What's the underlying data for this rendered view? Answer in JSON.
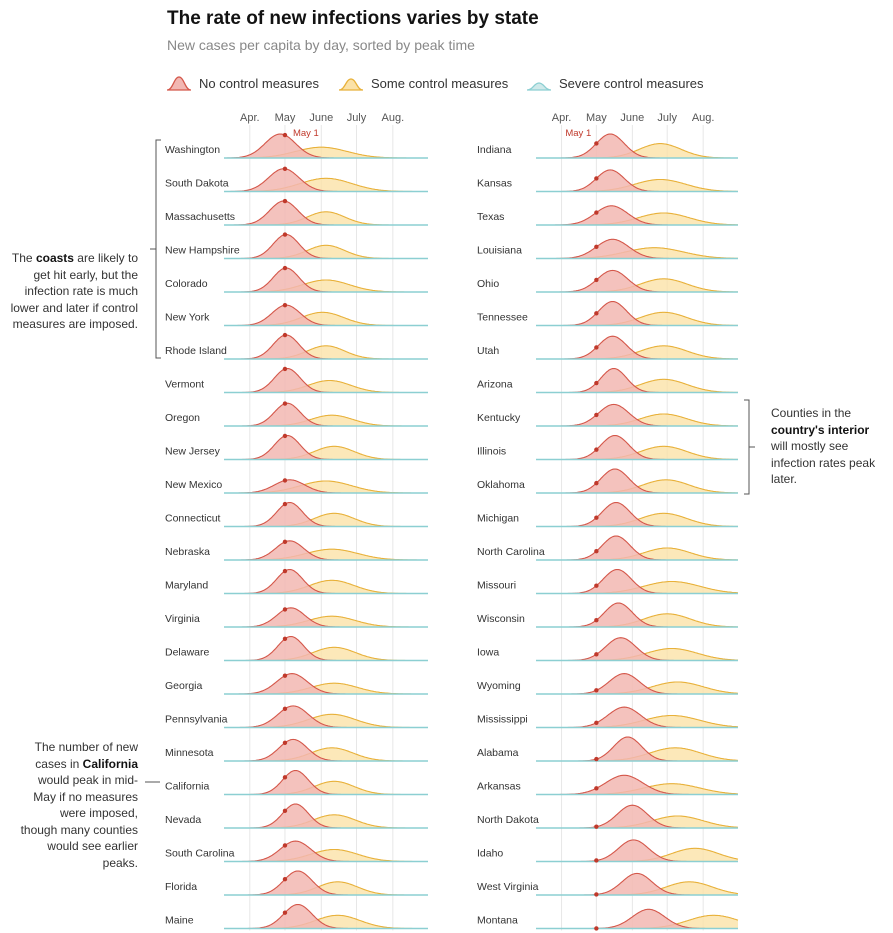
{
  "title": "The rate of new infections varies by state",
  "subtitle": "New cases per capita by day, sorted by peak time",
  "legend": {
    "items": [
      {
        "label": "No control measures",
        "fill": "#f2b7b2",
        "stroke": "#d4574a"
      },
      {
        "label": "Some control measures",
        "fill": "#fbe2a8",
        "stroke": "#e8b13a"
      },
      {
        "label": "Severe control measures",
        "fill": "#cfe9ea",
        "stroke": "#8ccfd2"
      }
    ]
  },
  "annotations": {
    "coasts": {
      "pre": "The ",
      "bold": "coasts",
      "post": " are likely to get hit early, but the infection rate is much lower and later if control measures are imposed."
    },
    "interior": {
      "pre": "Counties in the ",
      "bold": "country's interior",
      "post": " will mostly see infection rates peak later."
    },
    "california": {
      "pre": "The number of new cases in ",
      "bold": "California",
      "post": " would peak in mid-May if no measures were imposed, though many counties would see earlier peaks."
    }
  },
  "chart_data": {
    "type": "area",
    "x_axis": {
      "start": "Mar. 10",
      "end": "Aug. 31",
      "ticks": [
        "Apr.",
        "May",
        "June",
        "July",
        "Aug."
      ]
    },
    "marker": {
      "label": "May 1",
      "date": "May 1"
    },
    "units": "relative new cases per capita (peak of no-measures curve = 1)",
    "colors": {
      "none": "#d4574a",
      "some": "#e8b13a",
      "severe": "#8ccfd2"
    },
    "columns": [
      [
        {
          "state": "Washington",
          "none": {
            "peak": "Apr. 27",
            "width": 13,
            "height": 1.0
          },
          "some": {
            "peak": "June 1",
            "width": 22,
            "height": 0.45
          }
        },
        {
          "state": "South Dakota",
          "none": {
            "peak": "Apr. 30",
            "width": 13,
            "height": 0.95
          },
          "some": {
            "peak": "June 5",
            "width": 22,
            "height": 0.55
          }
        },
        {
          "state": "Massachusetts",
          "none": {
            "peak": "Apr. 30",
            "width": 12,
            "height": 1.0
          },
          "some": {
            "peak": "June 5",
            "width": 16,
            "height": 0.55
          }
        },
        {
          "state": "New Hampshire",
          "none": {
            "peak": "May 2",
            "width": 11,
            "height": 1.0
          },
          "some": {
            "peak": "June 5",
            "width": 16,
            "height": 0.55
          }
        },
        {
          "state": "Colorado",
          "none": {
            "peak": "May 2",
            "width": 11,
            "height": 1.0
          },
          "some": {
            "peak": "June 5",
            "width": 20,
            "height": 0.5
          }
        },
        {
          "state": "New York",
          "none": {
            "peak": "May 2",
            "width": 12,
            "height": 0.85
          },
          "some": {
            "peak": "June 2",
            "width": 18,
            "height": 0.55
          }
        },
        {
          "state": "Rhode Island",
          "none": {
            "peak": "May 2",
            "width": 11,
            "height": 1.0
          },
          "some": {
            "peak": "June 5",
            "width": 16,
            "height": 0.55
          }
        },
        {
          "state": "Vermont",
          "none": {
            "peak": "May 3",
            "width": 11,
            "height": 1.0
          },
          "some": {
            "peak": "June 8",
            "width": 18,
            "height": 0.5
          }
        },
        {
          "state": "Oregon",
          "none": {
            "peak": "May 3",
            "width": 11,
            "height": 0.95
          },
          "some": {
            "peak": "June 10",
            "width": 18,
            "height": 0.45
          }
        },
        {
          "state": "New Jersey",
          "none": {
            "peak": "May 3",
            "width": 11,
            "height": 1.0
          },
          "some": {
            "peak": "June 12",
            "width": 17,
            "height": 0.55
          }
        },
        {
          "state": "New Mexico",
          "none": {
            "peak": "May 5",
            "width": 13,
            "height": 0.55
          },
          "some": {
            "peak": "June 5",
            "width": 22,
            "height": 0.5
          }
        },
        {
          "state": "Connecticut",
          "none": {
            "peak": "May 5",
            "width": 11,
            "height": 1.0
          },
          "some": {
            "peak": "June 12",
            "width": 17,
            "height": 0.55
          }
        },
        {
          "state": "Nebraska",
          "none": {
            "peak": "May 5",
            "width": 12,
            "height": 0.8
          },
          "some": {
            "peak": "June 10",
            "width": 22,
            "height": 0.45
          }
        },
        {
          "state": "Maryland",
          "none": {
            "peak": "May 5",
            "width": 11,
            "height": 1.0
          },
          "some": {
            "peak": "June 10",
            "width": 19,
            "height": 0.55
          }
        },
        {
          "state": "Virginia",
          "none": {
            "peak": "May 6",
            "width": 12,
            "height": 0.8
          },
          "some": {
            "peak": "June 10",
            "width": 20,
            "height": 0.45
          }
        },
        {
          "state": "Delaware",
          "none": {
            "peak": "May 6",
            "width": 11,
            "height": 1.0
          },
          "some": {
            "peak": "June 12",
            "width": 18,
            "height": 0.55
          }
        },
        {
          "state": "Georgia",
          "none": {
            "peak": "May 7",
            "width": 13,
            "height": 0.85
          },
          "some": {
            "peak": "June 12",
            "width": 20,
            "height": 0.45
          }
        },
        {
          "state": "Pennsylvania",
          "none": {
            "peak": "May 8",
            "width": 13,
            "height": 0.9
          },
          "some": {
            "peak": "June 10",
            "width": 20,
            "height": 0.55
          }
        },
        {
          "state": "Minnesota",
          "none": {
            "peak": "May 8",
            "width": 12,
            "height": 0.9
          },
          "some": {
            "peak": "June 10",
            "width": 18,
            "height": 0.55
          }
        },
        {
          "state": "California",
          "none": {
            "peak": "May 10",
            "width": 11,
            "height": 1.0
          },
          "some": {
            "peak": "June 12",
            "width": 17,
            "height": 0.55
          }
        },
        {
          "state": "Nevada",
          "none": {
            "peak": "May 10",
            "width": 11,
            "height": 1.0
          },
          "some": {
            "peak": "June 12",
            "width": 18,
            "height": 0.55
          }
        },
        {
          "state": "South Carolina",
          "none": {
            "peak": "May 10",
            "width": 13,
            "height": 0.85
          },
          "some": {
            "peak": "June 12",
            "width": 20,
            "height": 0.5
          }
        },
        {
          "state": "Florida",
          "none": {
            "peak": "May 12",
            "width": 12,
            "height": 1.0
          },
          "some": {
            "peak": "June 15",
            "width": 17,
            "height": 0.55
          }
        },
        {
          "state": "Maine",
          "none": {
            "peak": "May 12",
            "width": 12,
            "height": 1.0
          },
          "some": {
            "peak": "June 15",
            "width": 19,
            "height": 0.55
          }
        }
      ],
      [
        {
          "state": "Indiana",
          "none": {
            "peak": "May 13",
            "width": 12,
            "height": 1.0
          },
          "some": {
            "peak": "June 25",
            "width": 18,
            "height": 0.6
          }
        },
        {
          "state": "Kansas",
          "none": {
            "peak": "May 13",
            "width": 12,
            "height": 0.9
          },
          "some": {
            "peak": "June 25",
            "width": 22,
            "height": 0.5
          }
        },
        {
          "state": "Texas",
          "none": {
            "peak": "May 14",
            "width": 14,
            "height": 0.8
          },
          "some": {
            "peak": "June 28",
            "width": 22,
            "height": 0.5
          }
        },
        {
          "state": "Louisiana",
          "none": {
            "peak": "May 15",
            "width": 14,
            "height": 0.8
          },
          "some": {
            "peak": "June 20",
            "width": 25,
            "height": 0.45
          }
        },
        {
          "state": "Ohio",
          "none": {
            "peak": "May 15",
            "width": 13,
            "height": 0.9
          },
          "some": {
            "peak": "June 28",
            "width": 20,
            "height": 0.55
          }
        },
        {
          "state": "Tennessee",
          "none": {
            "peak": "May 15",
            "width": 12,
            "height": 1.0
          },
          "some": {
            "peak": "June 28",
            "width": 20,
            "height": 0.55
          }
        },
        {
          "state": "Utah",
          "none": {
            "peak": "May 15",
            "width": 12,
            "height": 0.95
          },
          "some": {
            "peak": "June 28",
            "width": 20,
            "height": 0.55
          }
        },
        {
          "state": "Arizona",
          "none": {
            "peak": "May 16",
            "width": 11,
            "height": 1.0
          },
          "some": {
            "peak": "June 28",
            "width": 20,
            "height": 0.55
          }
        },
        {
          "state": "Kentucky",
          "none": {
            "peak": "May 16",
            "width": 13,
            "height": 0.9
          },
          "some": {
            "peak": "June 28",
            "width": 20,
            "height": 0.5
          }
        },
        {
          "state": "Illinois",
          "none": {
            "peak": "May 17",
            "width": 12,
            "height": 1.0
          },
          "some": {
            "peak": "June 28",
            "width": 20,
            "height": 0.55
          }
        },
        {
          "state": "Oklahoma",
          "none": {
            "peak": "May 17",
            "width": 12,
            "height": 1.0
          },
          "some": {
            "peak": "June 30",
            "width": 20,
            "height": 0.55
          }
        },
        {
          "state": "Michigan",
          "none": {
            "peak": "May 18",
            "width": 12,
            "height": 1.0
          },
          "some": {
            "peak": "June 28",
            "width": 20,
            "height": 0.55
          }
        },
        {
          "state": "North Carolina",
          "none": {
            "peak": "May 18",
            "width": 12,
            "height": 1.0
          },
          "some": {
            "peak": "July 1",
            "width": 20,
            "height": 0.5
          }
        },
        {
          "state": "Missouri",
          "none": {
            "peak": "May 19",
            "width": 12,
            "height": 1.0
          },
          "some": {
            "peak": "July 5",
            "width": 24,
            "height": 0.5
          }
        },
        {
          "state": "Wisconsin",
          "none": {
            "peak": "May 20",
            "width": 12,
            "height": 1.0
          },
          "some": {
            "peak": "July 1",
            "width": 20,
            "height": 0.55
          }
        },
        {
          "state": "Iowa",
          "none": {
            "peak": "May 22",
            "width": 13,
            "height": 0.95
          },
          "some": {
            "peak": "July 5",
            "width": 22,
            "height": 0.5
          }
        },
        {
          "state": "Wyoming",
          "none": {
            "peak": "May 25",
            "width": 13,
            "height": 0.85
          },
          "some": {
            "peak": "July 10",
            "width": 22,
            "height": 0.5
          }
        },
        {
          "state": "Mississippi",
          "none": {
            "peak": "May 25",
            "width": 14,
            "height": 0.85
          },
          "some": {
            "peak": "July 5",
            "width": 24,
            "height": 0.5
          }
        },
        {
          "state": "Alabama",
          "none": {
            "peak": "May 28",
            "width": 12,
            "height": 1.0
          },
          "some": {
            "peak": "July 8",
            "width": 22,
            "height": 0.55
          }
        },
        {
          "state": "Arkansas",
          "none": {
            "peak": "May 25",
            "width": 16,
            "height": 0.8
          },
          "some": {
            "peak": "July 5",
            "width": 24,
            "height": 0.45
          }
        },
        {
          "state": "North Dakota",
          "none": {
            "peak": "June 1",
            "width": 13,
            "height": 0.95
          },
          "some": {
            "peak": "July 10",
            "width": 22,
            "height": 0.5
          }
        },
        {
          "state": "Idaho",
          "none": {
            "peak": "June 2",
            "width": 13,
            "height": 0.9
          },
          "some": {
            "peak": "July 25",
            "width": 20,
            "height": 0.55
          }
        },
        {
          "state": "West Virginia",
          "none": {
            "peak": "June 5",
            "width": 13,
            "height": 0.9
          },
          "some": {
            "peak": "July 20",
            "width": 20,
            "height": 0.55
          }
        },
        {
          "state": "Montana",
          "none": {
            "peak": "June 15",
            "width": 14,
            "height": 0.8
          },
          "some": {
            "peak": "Aug. 10",
            "width": 22,
            "height": 0.55
          }
        }
      ]
    ]
  }
}
